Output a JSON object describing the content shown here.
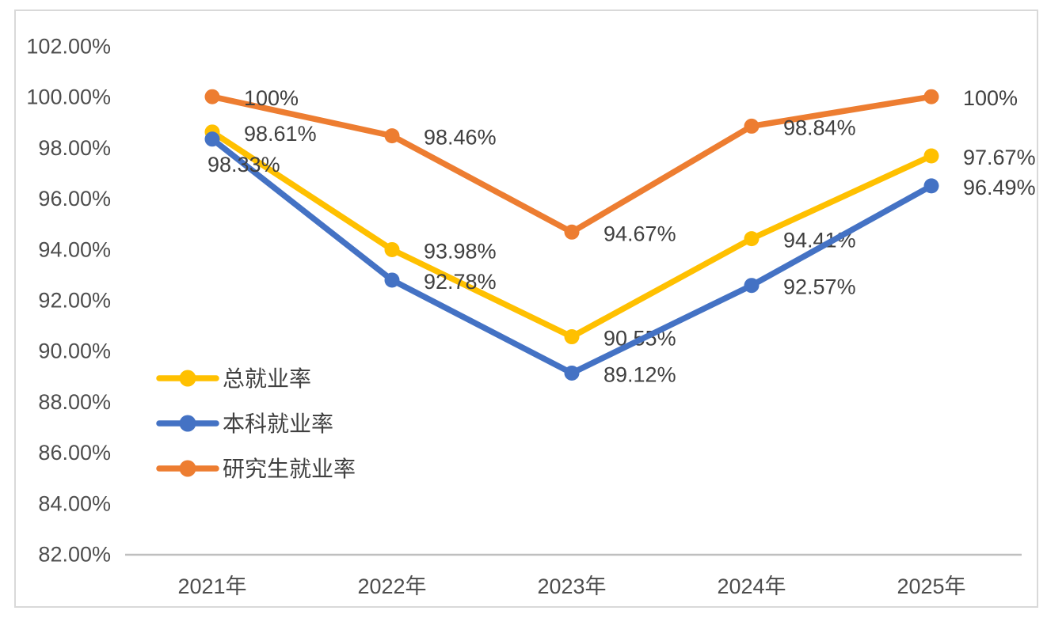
{
  "chart_data": {
    "type": "line",
    "title": "",
    "xlabel": "",
    "ylabel": "",
    "categories": [
      "2021年",
      "2022年",
      "2023年",
      "2024年",
      "2025年"
    ],
    "series": [
      {
        "key": "total-employment-rate",
        "name": "总就业率",
        "color": "#FFC000",
        "values": [
          98.61,
          93.98,
          90.55,
          94.41,
          97.67
        ],
        "labels": [
          "98.61%",
          "93.98%",
          "90.55%",
          "94.41%",
          "97.67%"
        ],
        "label_positions": [
          "right",
          "right",
          "right",
          "right",
          "right"
        ]
      },
      {
        "key": "undergraduate-employment-rate",
        "name": "本科就业率",
        "color": "#4472C4",
        "values": [
          98.33,
          92.78,
          89.12,
          92.57,
          96.49
        ],
        "labels": [
          "98.33%",
          "92.78%",
          "89.12%",
          "92.57%",
          "96.49%"
        ],
        "label_positions": [
          "below",
          "right",
          "right",
          "right",
          "right"
        ]
      },
      {
        "key": "graduate-employment-rate",
        "name": "研究生就业率",
        "color": "#ED7D31",
        "values": [
          100,
          98.46,
          94.67,
          98.84,
          100
        ],
        "labels": [
          "100%",
          "98.46%",
          "94.67%",
          "98.84%",
          "100%"
        ],
        "label_positions": [
          "right",
          "right",
          "right",
          "right",
          "right"
        ]
      }
    ],
    "y_axis": {
      "min": 82,
      "max": 102,
      "step": 2,
      "tick_labels": [
        "102.00%",
        "100.00%",
        "98.00%",
        "96.00%",
        "94.00%",
        "92.00%",
        "90.00%",
        "88.00%",
        "86.00%",
        "84.00%",
        "82.00%"
      ]
    },
    "ylim": [
      82,
      102
    ],
    "grid": false,
    "legend_position": "inside-left-middle",
    "legend_order": [
      "总就业率",
      "本科就业率",
      "研究生就业率"
    ],
    "colors": {
      "axis_line": "#BFBFBF",
      "tick_text": "#4D4D4D",
      "data_label_text": "#404040",
      "legend_text": "#404040",
      "chart_border": "#D9D9D9",
      "background": "#FFFFFF"
    }
  }
}
